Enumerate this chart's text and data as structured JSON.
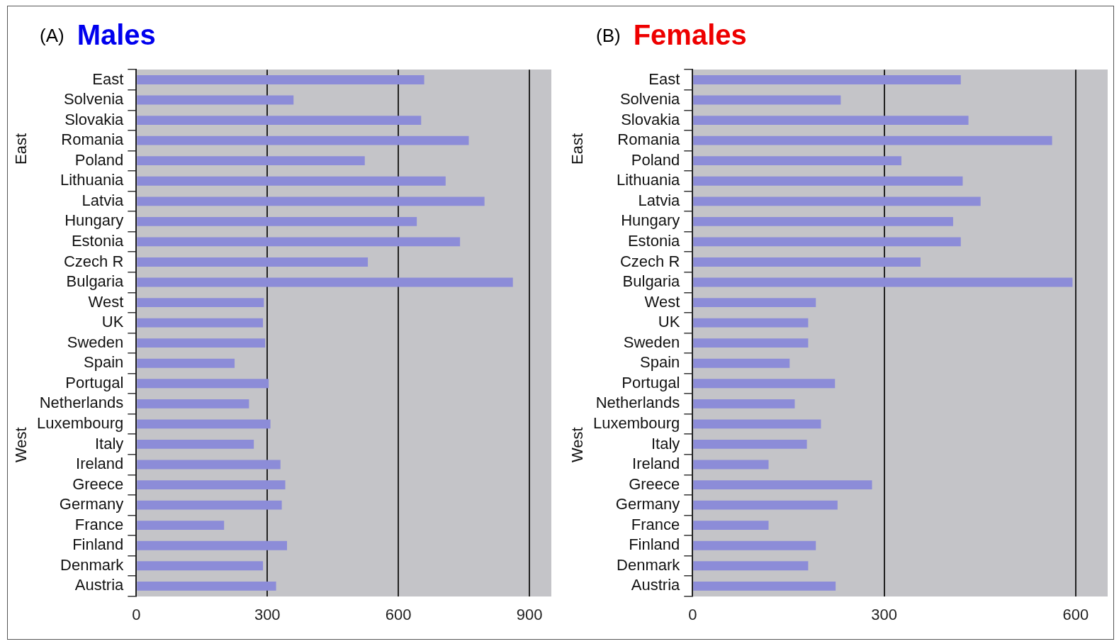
{
  "chart_data": [
    {
      "type": "bar",
      "orientation": "horizontal",
      "title": "Males",
      "categories": [
        "East",
        "Solvenia",
        "Slovakia",
        "Romania",
        "Poland",
        "Lithuania",
        "Latvia",
        "Hungary",
        "Estonia",
        "Czech R",
        "Bulgaria",
        "West",
        "UK",
        "Sweden",
        "Spain",
        "Portugal",
        "Netherlands",
        "Luxembourg",
        "Italy",
        "Ireland",
        "Greece",
        "Germany",
        "France",
        "Finland",
        "Denmark",
        "Austria"
      ],
      "series": [
        {
          "color": "#8c8cd8",
          "values": [
            659,
            360,
            652,
            761,
            523,
            708,
            797,
            642,
            741,
            530,
            862,
            292,
            290,
            295,
            225,
            303,
            258,
            307,
            269,
            330,
            341,
            333,
            201,
            345,
            290,
            320
          ]
        }
      ],
      "xlim": [
        0,
        950
      ],
      "xticks": [
        0,
        300,
        600,
        900
      ],
      "grid": "x",
      "legend": false,
      "annotations": [
        "(A)",
        "East",
        "West"
      ]
    },
    {
      "type": "bar",
      "orientation": "horizontal",
      "title": "Females",
      "categories": [
        "East",
        "Solvenia",
        "Slovakia",
        "Romania",
        "Poland",
        "Lithuania",
        "Latvia",
        "Hungary",
        "Estonia",
        "Czech R",
        "Bulgaria",
        "West",
        "UK",
        "Sweden",
        "Spain",
        "Portugal",
        "Netherlands",
        "Luxembourg",
        "Italy",
        "Ireland",
        "Greece",
        "Germany",
        "France",
        "Finland",
        "Denmark",
        "Austria"
      ],
      "series": [
        {
          "color": "#8c8cd8",
          "values": [
            420,
            232,
            432,
            563,
            327,
            423,
            451,
            408,
            420,
            357,
            595,
            193,
            181,
            181,
            152,
            223,
            160,
            201,
            179,
            119,
            281,
            227,
            119,
            193,
            181,
            224
          ]
        }
      ],
      "xlim": [
        0,
        650
      ],
      "xticks": [
        0,
        300,
        600
      ],
      "grid": "x",
      "legend": false,
      "annotations": [
        "(B)",
        "East",
        "West"
      ]
    }
  ]
}
